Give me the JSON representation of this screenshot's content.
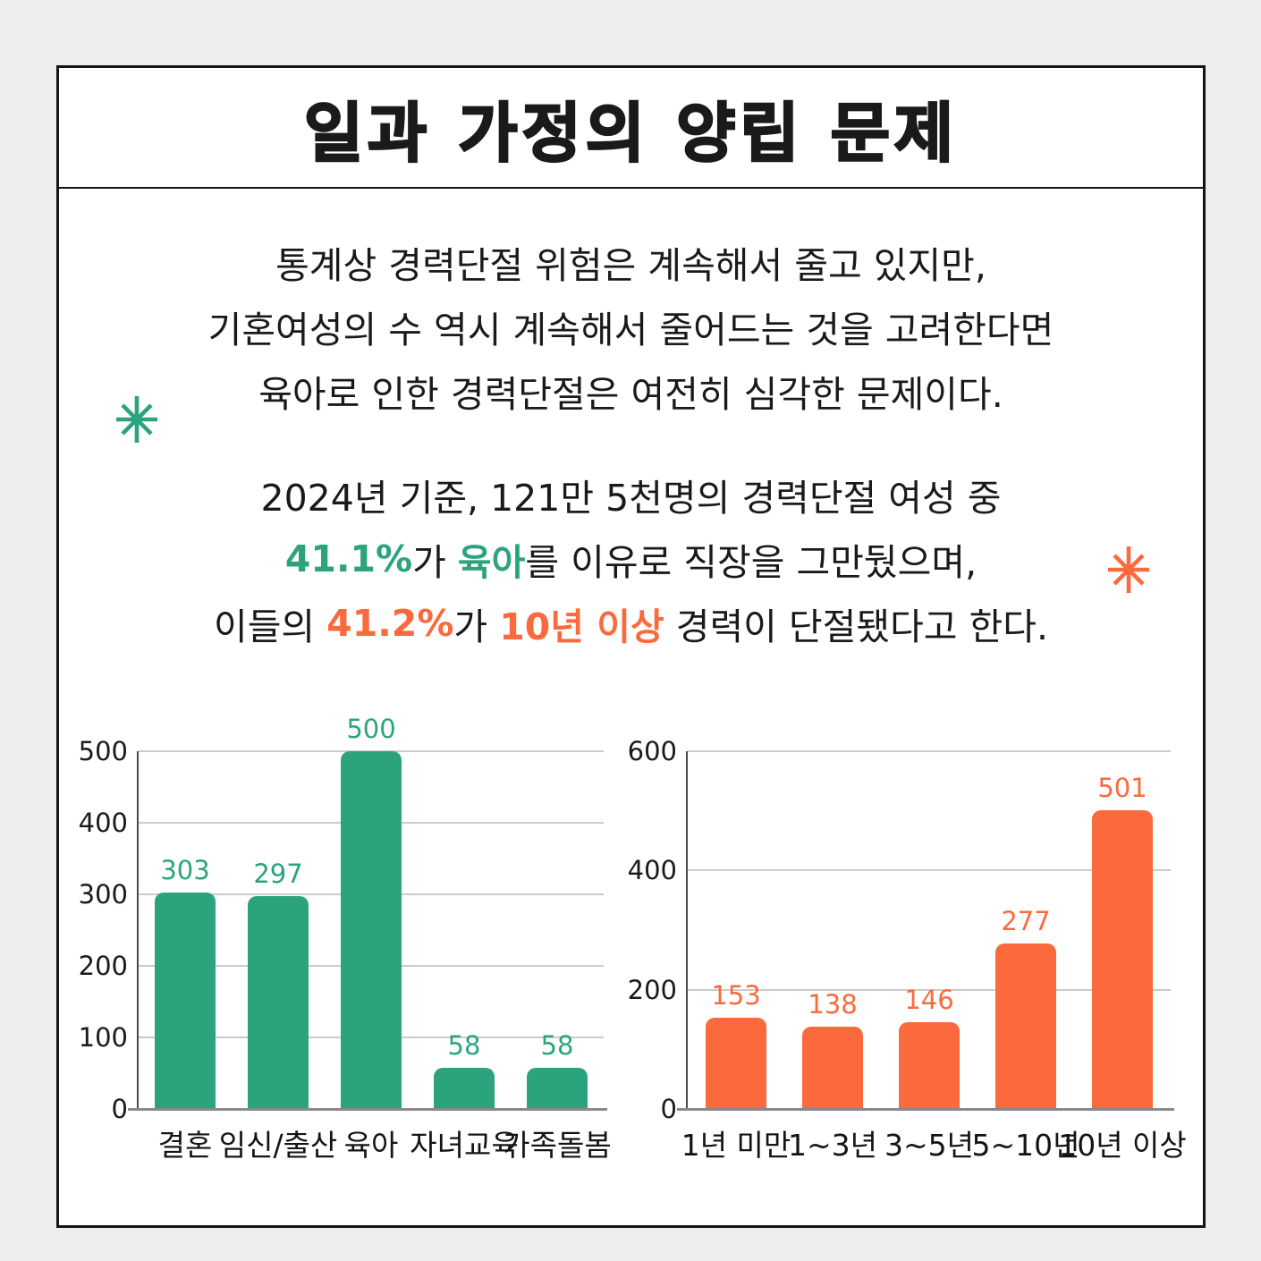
{
  "colors": {
    "green": "#2BA47E",
    "orange": "#FA6A3C",
    "text": "#1A1A1A",
    "background": "#EDEDED",
    "card_background": "#FFFFFF",
    "card_border": "#141414",
    "gridline": "#CBCBCB",
    "axis": "#8A8A8A"
  },
  "title": "일과 가정의 양립 문제",
  "paragraphs": [
    {
      "lines": [
        [
          {
            "t": "통계상 경력단절 위험은 계속해서 줄고 있지만,"
          }
        ],
        [
          {
            "t": "기혼여성의 수 역시 계속해서 줄어드는 것을 고려한다면"
          }
        ],
        [
          {
            "t": "육아로 인한 경력단절은 여전히 심각한 문제이다."
          }
        ]
      ]
    },
    {
      "lines": [
        [
          {
            "t": "2024년 기준, 121만 5천명의 경력단절 여성 중"
          }
        ],
        [
          {
            "t": "41.1%",
            "c": "green"
          },
          {
            "t": "가 "
          },
          {
            "t": "육아",
            "c": "green"
          },
          {
            "t": "를 이유로 직장을 그만뒀으며,"
          }
        ],
        [
          {
            "t": "이들의 "
          },
          {
            "t": "41.2%",
            "c": "orange"
          },
          {
            "t": "가 "
          },
          {
            "t": "10년 이상",
            "c": "orange"
          },
          {
            "t": " 경력이 단절됐다고 한다."
          }
        ]
      ]
    }
  ],
  "decorations": {
    "left_asterisk_color": "#2BA47E",
    "right_asterisk_color": "#FA6A3C"
  },
  "chart_data": [
    {
      "type": "bar",
      "title": "",
      "xlabel": "",
      "ylabel": "",
      "categories": [
        "결혼",
        "임신/출산",
        "육아",
        "자녀교육",
        "가족돌봄"
      ],
      "values": [
        303,
        297,
        500,
        58,
        58
      ],
      "bar_color": "#2BA47E",
      "value_label_color": "#2BA47E",
      "ylim": [
        0,
        500
      ],
      "yticks": [
        0,
        100,
        200,
        300,
        400,
        500
      ],
      "grid": true,
      "legend": "none"
    },
    {
      "type": "bar",
      "title": "",
      "xlabel": "",
      "ylabel": "",
      "categories": [
        "1년 미만",
        "1~3년",
        "3~5년",
        "5~10년",
        "10년 이상"
      ],
      "values": [
        153,
        138,
        146,
        277,
        501
      ],
      "bar_color": "#FA6A3C",
      "value_label_color": "#FA6A3C",
      "ylim": [
        0,
        600
      ],
      "yticks": [
        0,
        200,
        400,
        600
      ],
      "grid": true,
      "legend": "none"
    }
  ]
}
